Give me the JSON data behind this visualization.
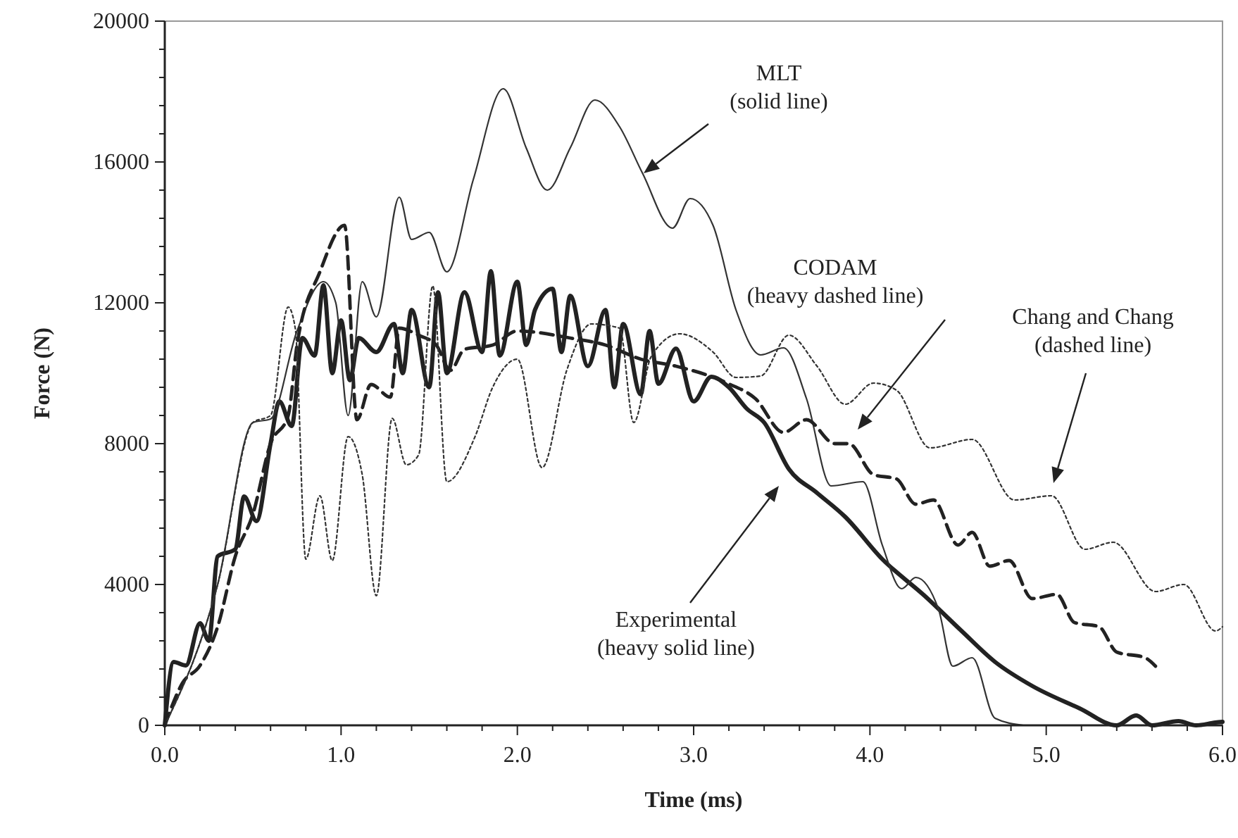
{
  "chart_data": {
    "type": "line",
    "xlabel": "Time (ms)",
    "ylabel": "Force (N)",
    "xlim": [
      0,
      6
    ],
    "ylim": [
      0,
      20000
    ],
    "xticks": [
      {
        "value": 0,
        "label": "0.0"
      },
      {
        "value": 0.2,
        "label": null
      },
      {
        "value": 0.4,
        "label": null
      },
      {
        "value": 0.6,
        "label": null
      },
      {
        "value": 0.8,
        "label": null
      },
      {
        "value": 1,
        "label": "1.0"
      },
      {
        "value": 1.2,
        "label": null
      },
      {
        "value": 1.4,
        "label": null
      },
      {
        "value": 1.6,
        "label": null
      },
      {
        "value": 1.8,
        "label": null
      },
      {
        "value": 2,
        "label": "2.0"
      },
      {
        "value": 2.2,
        "label": null
      },
      {
        "value": 2.4,
        "label": null
      },
      {
        "value": 2.6,
        "label": null
      },
      {
        "value": 2.8,
        "label": null
      },
      {
        "value": 3,
        "label": "3.0"
      },
      {
        "value": 3.2,
        "label": null
      },
      {
        "value": 3.4,
        "label": null
      },
      {
        "value": 3.6,
        "label": null
      },
      {
        "value": 3.8,
        "label": null
      },
      {
        "value": 4,
        "label": "4.0"
      },
      {
        "value": 4.2,
        "label": null
      },
      {
        "value": 4.4,
        "label": null
      },
      {
        "value": 4.6,
        "label": null
      },
      {
        "value": 4.8,
        "label": null
      },
      {
        "value": 5,
        "label": "5.0"
      },
      {
        "value": 5.2,
        "label": null
      },
      {
        "value": 5.4,
        "label": null
      },
      {
        "value": 5.6,
        "label": null
      },
      {
        "value": 5.8,
        "label": null
      },
      {
        "value": 6,
        "label": "6.0"
      }
    ],
    "yticks": [
      0,
      {
        "value": 800,
        "label": null
      },
      {
        "value": 1600,
        "label": null
      },
      {
        "value": 2400,
        "label": null
      },
      {
        "value": 3200,
        "label": null
      },
      4000,
      {
        "value": 4800,
        "label": null
      },
      {
        "value": 5600,
        "label": null
      },
      {
        "value": 6400,
        "label": null
      },
      {
        "value": 7200,
        "label": null
      },
      8000,
      {
        "value": 8800,
        "label": null
      },
      {
        "value": 9600,
        "label": null
      },
      {
        "value": 10400,
        "label": null
      },
      {
        "value": 11200,
        "label": null
      },
      12000,
      {
        "value": 12800,
        "label": null
      },
      {
        "value": 13600,
        "label": null
      },
      {
        "value": 14400,
        "label": null
      },
      {
        "value": 15200,
        "label": null
      },
      16000,
      {
        "value": 16800,
        "label": null
      },
      {
        "value": 17600,
        "label": null
      },
      {
        "value": 18400,
        "label": null
      },
      {
        "value": 19200,
        "label": null
      },
      20000
    ],
    "grid": false,
    "series": [
      {
        "color": "#222222",
        "line_style": "solid",
        "x": [
          0,
          0.05,
          0.12,
          0.2,
          0.25,
          0.3,
          0.4,
          0.45,
          0.52,
          0.6,
          0.65,
          0.72,
          0.78,
          0.85,
          0.9,
          0.95,
          1.0,
          1.05,
          1.1,
          1.2,
          1.3,
          1.35,
          1.4,
          1.5,
          1.55,
          1.6,
          1.7,
          1.8,
          1.85,
          1.9,
          2.0,
          2.05,
          2.1,
          2.2,
          2.25,
          2.3,
          2.4,
          2.5,
          2.55,
          2.6,
          2.7,
          2.75,
          2.8,
          2.9,
          3.0,
          3.1,
          3.2,
          3.3,
          3.4,
          3.54,
          3.7,
          3.86,
          4.07,
          4.31,
          4.52,
          4.71,
          4.92,
          5.19,
          5.4,
          5.51,
          5.6,
          5.75,
          5.85,
          5.96,
          6.0
        ],
        "values": [
          0,
          1800,
          1700,
          2900,
          2400,
          4800,
          5000,
          6500,
          5800,
          8000,
          9200,
          8500,
          11000,
          10500,
          12500,
          10000,
          11500,
          9800,
          11000,
          10600,
          11400,
          10000,
          11800,
          9600,
          12300,
          10000,
          12300,
          10600,
          12900,
          10500,
          12600,
          10800,
          11800,
          12400,
          10600,
          12200,
          10200,
          11800,
          9600,
          11400,
          9400,
          11200,
          9700,
          10700,
          9200,
          9900,
          9600,
          9000,
          8600,
          7280,
          6600,
          5920,
          4720,
          3680,
          2680,
          1800,
          1120,
          480,
          0,
          280,
          0,
          120,
          0,
          80,
          100
        ]
      },
      {
        "color": "#333333",
        "line_style": "solid",
        "x": [
          0,
          0.3,
          0.5,
          0.6,
          0.75,
          0.9,
          0.97,
          1.04,
          1.12,
          1.2,
          1.33,
          1.4,
          1.5,
          1.6,
          1.75,
          1.92,
          2.05,
          2.17,
          2.3,
          2.44,
          2.58,
          2.71,
          2.88,
          2.98,
          3.11,
          3.24,
          3.38,
          3.51,
          3.64,
          3.78,
          3.96,
          4.07,
          4.18,
          4.26,
          4.39,
          4.47,
          4.58,
          4.71,
          4.87
        ],
        "values": [
          0,
          4000,
          8600,
          8700,
          11200,
          12600,
          12000,
          8800,
          12600,
          11600,
          15000,
          13800,
          14000,
          12880,
          15500,
          18080,
          16400,
          15200,
          16400,
          17760,
          17000,
          15680,
          14120,
          14960,
          14200,
          11800,
          10520,
          10720,
          9280,
          6800,
          6920,
          5120,
          3880,
          4200,
          3280,
          1680,
          1920,
          200,
          0
        ]
      },
      {
        "color": "#222222",
        "line_style": "dashed",
        "x": [
          0,
          0.1,
          0.2,
          0.3,
          0.4,
          0.5,
          0.6,
          0.7,
          0.75,
          0.88,
          1.02,
          1.09,
          1.17,
          1.28,
          1.33,
          1.44,
          1.54,
          1.62,
          1.7,
          1.86,
          2.0,
          2.3,
          2.5,
          2.7,
          2.9,
          3.19,
          3.35,
          3.51,
          3.64,
          3.8,
          3.88,
          4.02,
          4.15,
          4.26,
          4.36,
          4.5,
          4.58,
          4.68,
          4.79,
          4.92,
          5.06,
          5.16,
          5.3,
          5.4,
          5.56,
          5.62
        ],
        "values": [
          0,
          1200,
          1700,
          2800,
          4800,
          6000,
          8000,
          8800,
          10800,
          12880,
          14200,
          8680,
          9680,
          9320,
          11280,
          11080,
          10800,
          10080,
          10680,
          10800,
          11200,
          11000,
          10800,
          10400,
          10200,
          9720,
          9280,
          8320,
          8680,
          8000,
          8000,
          7120,
          7000,
          6280,
          6400,
          5120,
          5480,
          4520,
          4680,
          3600,
          3720,
          2920,
          2800,
          2080,
          1920,
          1680
        ]
      },
      {
        "color": "#333333",
        "line_style": "dotted",
        "x": [
          0,
          0.3,
          0.5,
          0.6,
          0.7,
          0.74,
          0.8,
          0.88,
          0.95,
          1.04,
          1.12,
          1.2,
          1.29,
          1.37,
          1.44,
          1.52,
          1.6,
          1.76,
          1.86,
          2.0,
          2.14,
          2.28,
          2.42,
          2.58,
          2.66,
          2.76,
          2.92,
          3.11,
          3.24,
          3.38,
          3.54,
          3.7,
          3.86,
          4.02,
          4.15,
          4.34,
          4.58,
          4.82,
          5.03,
          5.22,
          5.38,
          5.62,
          5.78,
          5.96,
          6.0
        ],
        "values": [
          0,
          4000,
          8600,
          8800,
          11880,
          11280,
          4720,
          6520,
          4680,
          8200,
          7120,
          3680,
          8720,
          7400,
          7680,
          12480,
          6920,
          8200,
          9600,
          10400,
          7320,
          10080,
          11400,
          11280,
          8600,
          10480,
          11120,
          10600,
          9880,
          9920,
          11080,
          10200,
          9120,
          9720,
          9520,
          7880,
          8120,
          6400,
          6520,
          5000,
          5200,
          3800,
          4000,
          2680,
          2800
        ]
      }
    ],
    "annotations": [
      "MLT\n(solid line)",
      "CODAM\n(heavy dashed line)",
      "Chang and Chang\n(dashed line)",
      "Experimental\n(heavy solid line)"
    ]
  }
}
